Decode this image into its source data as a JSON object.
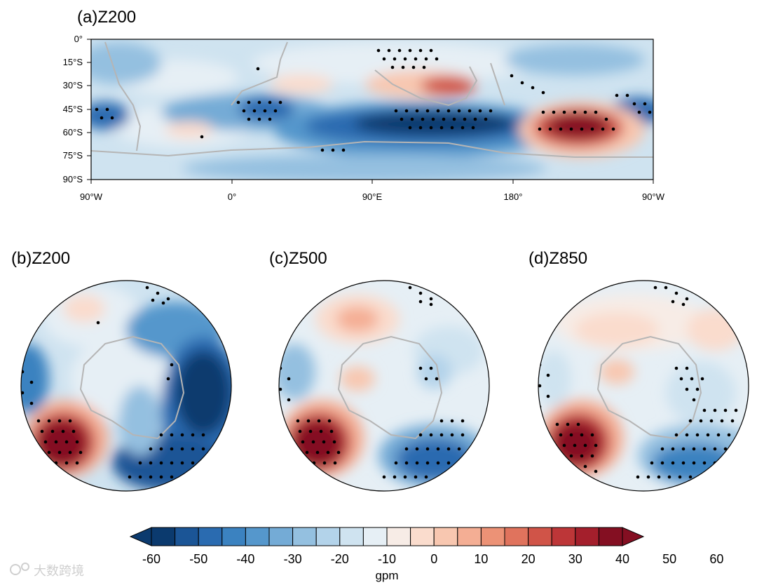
{
  "figure": {
    "panels": [
      {
        "id": "a",
        "title": "(a)Z200",
        "projection": "cylindrical equidistant"
      },
      {
        "id": "b",
        "title": "(b)Z200",
        "projection": "south polar stereographic"
      },
      {
        "id": "c",
        "title": "(c)Z500",
        "projection": "south polar stereographic"
      },
      {
        "id": "d",
        "title": "(d)Z850",
        "projection": "south polar stereographic"
      }
    ],
    "map_a": {
      "lat_ticks": [
        "0°",
        "15°S",
        "30°S",
        "45°S",
        "60°S",
        "75°S",
        "90°S"
      ],
      "lon_ticks": [
        "90°W",
        "0°",
        "90°E",
        "180°",
        "90°W"
      ]
    },
    "colorbar": {
      "ticks": [
        "-60",
        "-50",
        "-40",
        "-30",
        "-20",
        "-10",
        "0",
        "10",
        "20",
        "30",
        "40",
        "50",
        "60"
      ],
      "units": "gpm",
      "colors": [
        "#0b3a6e",
        "#1b5596",
        "#2a6bb0",
        "#3b82c0",
        "#5597cc",
        "#74abd6",
        "#94c0e0",
        "#b3d3ea",
        "#cfe3f0",
        "#e6eff5",
        "#f7ece6",
        "#fadccd",
        "#f8c7b0",
        "#f4ae94",
        "#ec9276",
        "#e0735d",
        "#d05448",
        "#bd3638",
        "#a41f2c",
        "#840f22"
      ]
    },
    "watermark": "大数跨境",
    "colors": {
      "continent_outline": "#b5b5b5",
      "significance_dot": "#000000"
    }
  }
}
